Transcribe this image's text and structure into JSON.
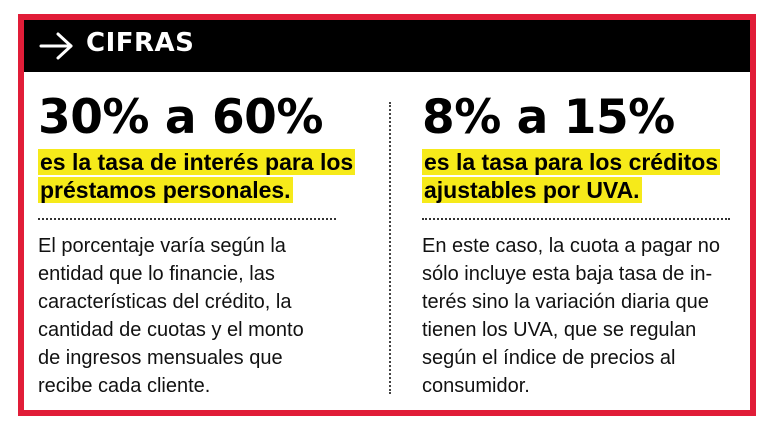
{
  "header": {
    "title": "CIFRAS",
    "icon": "arrow-right-icon",
    "background": "#000000",
    "text_color": "#ffffff"
  },
  "frame_color": "#e11d38",
  "highlight_color": "#f6ea1a",
  "left": {
    "figure": "30% a 60%",
    "subtitle_line1": "es la tasa de interés para los",
    "subtitle_line2": "préstamos personales.",
    "body_lines": [
      "El porcentaje varía según la",
      "entidad que lo financie, las",
      "características del crédito, la",
      "cantidad de cuotas y el monto",
      "de ingresos mensuales que",
      "recibe cada cliente."
    ]
  },
  "right": {
    "figure": "8% a 15%",
    "subtitle_line1": "es la tasa para los créditos",
    "subtitle_line2": "ajustables por UVA.",
    "body_lines": [
      "En este caso, la cuota a pagar no",
      "sólo incluye esta baja tasa de in-",
      "terés sino la variación diaria que",
      "tienen los UVA, que se regulan",
      "según el índice de precios al",
      "consumidor."
    ]
  }
}
